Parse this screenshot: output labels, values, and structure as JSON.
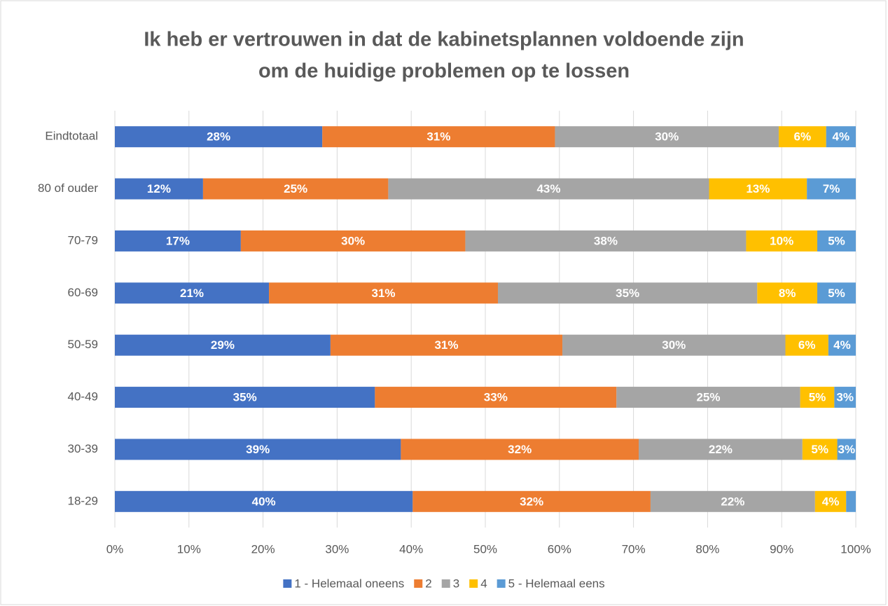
{
  "chart_data": {
    "type": "stacked-bar-horizontal",
    "title": [
      "Ik heb er vertrouwen in dat de kabinetsplannen voldoende zijn",
      "om de huidige problemen op te lossen"
    ],
    "categories": [
      "Eindtotaal",
      "80 of ouder",
      "70-79",
      "60-69",
      "50-59",
      "40-49",
      "30-39",
      "18-29"
    ],
    "series": [
      {
        "name": "1 - Helemaal oneens",
        "color": "#4472c4",
        "values": [
          28.0,
          11.9,
          17.0,
          20.8,
          29.1,
          35.1,
          38.6,
          40.2
        ],
        "value_labels": [
          "28%",
          "12%",
          "17%",
          "21%",
          "29%",
          "35%",
          "39%",
          "40%"
        ]
      },
      {
        "name": "2",
        "color": "#ed7d31",
        "values": [
          31.4,
          25.0,
          30.3,
          30.9,
          31.3,
          32.6,
          32.1,
          32.1
        ],
        "value_labels": [
          "31%",
          "25%",
          "30%",
          "31%",
          "31%",
          "33%",
          "32%",
          "32%"
        ]
      },
      {
        "name": "3",
        "color": "#a5a5a5",
        "values": [
          30.2,
          43.3,
          37.9,
          35.0,
          30.1,
          24.8,
          22.1,
          22.2
        ],
        "value_labels": [
          "30%",
          "43%",
          "38%",
          "35%",
          "30%",
          "25%",
          "22%",
          "22%"
        ]
      },
      {
        "name": "4",
        "color": "#ffc000",
        "values": [
          6.4,
          13.2,
          9.6,
          8.1,
          5.8,
          4.6,
          4.7,
          4.2
        ],
        "value_labels": [
          "6%",
          "13%",
          "10%",
          "8%",
          "6%",
          "5%",
          "5%",
          "4%"
        ]
      },
      {
        "name": "5 - Helemaal eens",
        "color": "#5b9bd5",
        "values": [
          4.0,
          6.6,
          5.2,
          5.2,
          3.7,
          2.9,
          2.5,
          1.3
        ],
        "value_labels": [
          "4%",
          "7%",
          "5%",
          "5%",
          "4%",
          "3%",
          "3%",
          null
        ]
      }
    ],
    "xlim": [
      0,
      100
    ],
    "xticks": [
      {
        "value": 0,
        "label": "0%"
      },
      {
        "value": 10,
        "label": "10%"
      },
      {
        "value": 20,
        "label": "20%"
      },
      {
        "value": 30,
        "label": "30%"
      },
      {
        "value": 40,
        "label": "40%"
      },
      {
        "value": 50,
        "label": "50%"
      },
      {
        "value": 60,
        "label": "60%"
      },
      {
        "value": 70,
        "label": "70%"
      },
      {
        "value": 80,
        "label": "80%"
      },
      {
        "value": 90,
        "label": "90%"
      },
      {
        "value": 100,
        "label": "100%"
      }
    ],
    "grid": true,
    "legend": "bottom"
  }
}
